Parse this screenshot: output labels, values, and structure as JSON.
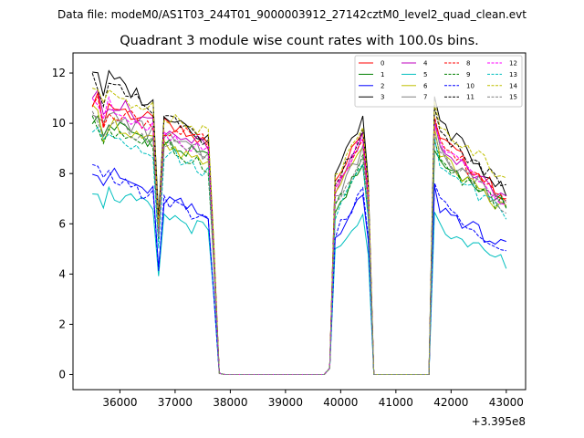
{
  "header": {
    "data_file": "Data file: modeM0/AS1T03_244T01_9000003912_27142cztM0_level2_quad_clean.evt"
  },
  "chart_data": {
    "type": "line",
    "title": "Quadrant 3 module wise count rates with 100.0s bins.",
    "xlabel": "",
    "ylabel": "",
    "x_offset_label": "+3.395e8",
    "xlim": [
      35150,
      43350
    ],
    "ylim": [
      -0.6,
      12.8
    ],
    "xticks": [
      36000,
      37000,
      38000,
      39000,
      40000,
      41000,
      42000,
      43000
    ],
    "yticks": [
      0,
      2,
      4,
      6,
      8,
      10,
      12
    ],
    "x_segments": [
      [
        35500,
        37800
      ],
      [
        37800,
        39700
      ],
      [
        39700,
        40600
      ],
      [
        40600,
        41600
      ],
      [
        41600,
        43000
      ]
    ],
    "segment_shapes": [
      {
        "type": "high",
        "dips": [
          {
            "index": 12,
            "factor": 0.58
          },
          {
            "index": 2,
            "factor": 0.94
          }
        ]
      },
      {
        "type": "zero"
      },
      {
        "type": "burst"
      },
      {
        "type": "zero"
      },
      {
        "type": "high2"
      }
    ],
    "legend": {
      "placement": "top-right",
      "ncol": 4,
      "entries": [
        "0",
        "1",
        "2",
        "3",
        "4",
        "5",
        "6",
        "7",
        "8",
        "9",
        "10",
        "11",
        "12",
        "13",
        "14",
        "15"
      ]
    },
    "series": [
      {
        "name": "0",
        "color": "#ff0000",
        "dash": "solid",
        "level_start": 11.0,
        "level_end": 9.0,
        "level2_start": 9.6,
        "level2_end": 7.0,
        "burst_peak": 10.2
      },
      {
        "name": "1",
        "color": "#008000",
        "dash": "solid",
        "level_start": 10.2,
        "level_end": 8.4,
        "level2_start": 8.4,
        "level2_end": 6.8,
        "burst_peak": 8.8
      },
      {
        "name": "2",
        "color": "#0000ff",
        "dash": "solid",
        "level_start": 8.3,
        "level_end": 6.0,
        "level2_start": 6.8,
        "level2_end": 5.0,
        "burst_peak": 7.4
      },
      {
        "name": "3",
        "color": "#000000",
        "dash": "solid",
        "level_start": 12.2,
        "level_end": 9.2,
        "level2_start": 10.3,
        "level2_end": 7.2,
        "burst_peak": 10.7
      },
      {
        "name": "4",
        "color": "#bf00bf",
        "dash": "solid",
        "level_start": 11.2,
        "level_end": 8.8,
        "level2_start": 9.4,
        "level2_end": 6.9,
        "burst_peak": 10.0
      },
      {
        "name": "5",
        "color": "#00bfbf",
        "dash": "solid",
        "level_start": 7.5,
        "level_end": 5.5,
        "level2_start": 6.0,
        "level2_end": 4.4,
        "burst_peak": 6.6
      },
      {
        "name": "6",
        "color": "#bfbf00",
        "dash": "solid",
        "level_start": 10.4,
        "level_end": 8.0,
        "level2_start": 8.8,
        "level2_end": 6.5,
        "burst_peak": 9.6
      },
      {
        "name": "7",
        "color": "#808080",
        "dash": "solid",
        "level_start": 10.6,
        "level_end": 8.5,
        "level2_start": 9.0,
        "level2_end": 6.8,
        "burst_peak": 9.4
      },
      {
        "name": "8",
        "color": "#ff0000",
        "dash": "dashed",
        "level_start": 10.8,
        "level_end": 9.0,
        "level2_start": 9.3,
        "level2_end": 7.0,
        "burst_peak": 9.8
      },
      {
        "name": "9",
        "color": "#008000",
        "dash": "dashed",
        "level_start": 10.0,
        "level_end": 8.2,
        "level2_start": 8.6,
        "level2_end": 6.6,
        "burst_peak": 8.9
      },
      {
        "name": "10",
        "color": "#0000ff",
        "dash": "dashed",
        "level_start": 8.2,
        "level_end": 5.9,
        "level2_start": 7.0,
        "level2_end": 5.0,
        "burst_peak": 7.6
      },
      {
        "name": "11",
        "color": "#000000",
        "dash": "dashed",
        "level_start": 11.8,
        "level_end": 9.0,
        "level2_start": 9.8,
        "level2_end": 7.4,
        "burst_peak": 10.2
      },
      {
        "name": "12",
        "color": "#ff00ff",
        "dash": "dashed",
        "level_start": 11.0,
        "level_end": 8.6,
        "level2_start": 9.2,
        "level2_end": 6.9,
        "burst_peak": 9.9
      },
      {
        "name": "13",
        "color": "#00bfbf",
        "dash": "dashed",
        "level_start": 9.8,
        "level_end": 8.0,
        "level2_start": 8.5,
        "level2_end": 6.4,
        "burst_peak": 8.6
      },
      {
        "name": "14",
        "color": "#bfbf00",
        "dash": "dashed",
        "level_start": 11.4,
        "level_end": 9.6,
        "level2_start": 10.2,
        "level2_end": 7.8,
        "burst_peak": 10.5
      },
      {
        "name": "15",
        "color": "#808080",
        "dash": "dashed",
        "level_start": 10.4,
        "level_end": 8.3,
        "level2_start": 8.8,
        "level2_end": 6.6,
        "burst_peak": 9.2
      }
    ]
  }
}
